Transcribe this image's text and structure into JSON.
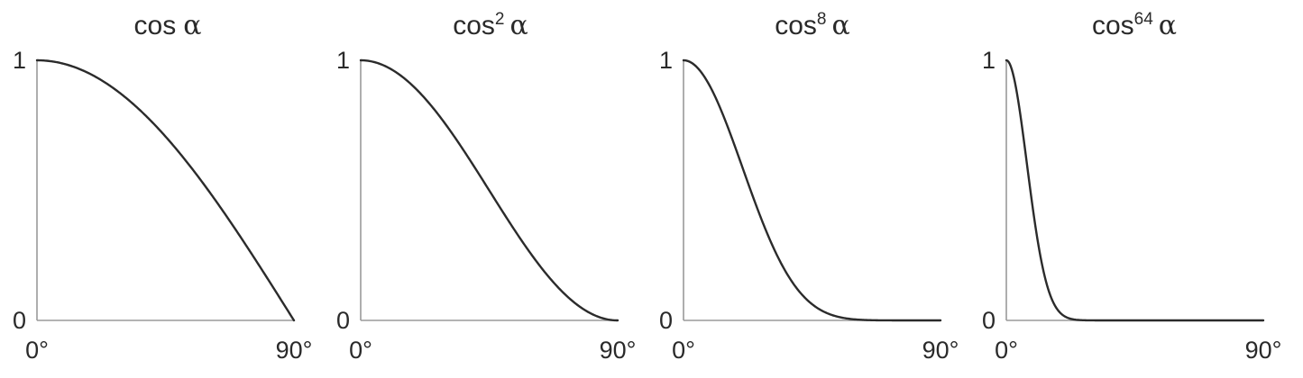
{
  "chart_data": [
    {
      "type": "line",
      "title": {
        "base": "cos",
        "exponent": "",
        "symbol": "α"
      },
      "function": "cos^n(alpha)",
      "exponent": 1,
      "xlim": [
        0,
        90
      ],
      "ylim": [
        0,
        1
      ],
      "x_ticks": [
        "0°",
        "90°"
      ],
      "y_ticks": [
        "0",
        "1"
      ],
      "x": [
        0,
        15,
        30,
        45,
        60,
        75,
        90
      ],
      "y": [
        1.0,
        0.966,
        0.866,
        0.707,
        0.5,
        0.259,
        0.0
      ]
    },
    {
      "type": "line",
      "title": {
        "base": "cos",
        "exponent": "2",
        "symbol": "α"
      },
      "function": "cos^n(alpha)",
      "exponent": 2,
      "xlim": [
        0,
        90
      ],
      "ylim": [
        0,
        1
      ],
      "x_ticks": [
        "0°",
        "90°"
      ],
      "y_ticks": [
        "0",
        "1"
      ],
      "x": [
        0,
        15,
        30,
        45,
        60,
        75,
        90
      ],
      "y": [
        1.0,
        0.933,
        0.75,
        0.5,
        0.25,
        0.067,
        0.0
      ]
    },
    {
      "type": "line",
      "title": {
        "base": "cos",
        "exponent": "8",
        "symbol": "α"
      },
      "function": "cos^n(alpha)",
      "exponent": 8,
      "xlim": [
        0,
        90
      ],
      "ylim": [
        0,
        1
      ],
      "x_ticks": [
        "0°",
        "90°"
      ],
      "y_ticks": [
        "0",
        "1"
      ],
      "x": [
        0,
        15,
        30,
        45,
        60,
        75,
        90
      ],
      "y": [
        1.0,
        0.758,
        0.316,
        0.063,
        0.004,
        0.0,
        0.0
      ]
    },
    {
      "type": "line",
      "title": {
        "base": "cos",
        "exponent": "64",
        "symbol": "α"
      },
      "function": "cos^n(alpha)",
      "exponent": 64,
      "xlim": [
        0,
        90
      ],
      "ylim": [
        0,
        1
      ],
      "x_ticks": [
        "0°",
        "90°"
      ],
      "y_ticks": [
        "0",
        "1"
      ],
      "x": [
        0,
        5,
        10,
        15,
        20,
        30,
        45,
        90
      ],
      "y": [
        1.0,
        0.784,
        0.375,
        0.109,
        0.019,
        0.0,
        0.0,
        0.0
      ]
    }
  ]
}
